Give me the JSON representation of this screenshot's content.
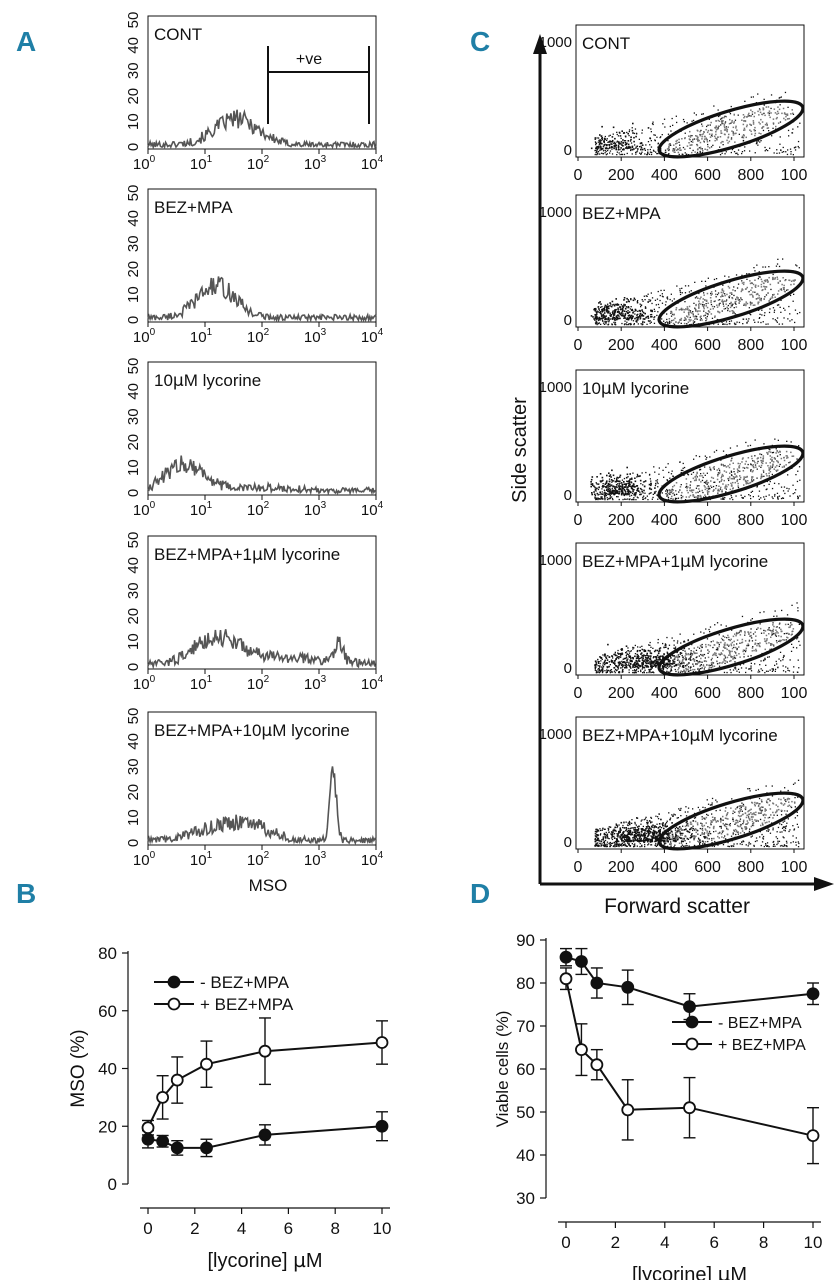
{
  "panel_labels": {
    "A": "A",
    "B": "B",
    "C": "C",
    "D": "D"
  },
  "colors": {
    "label_blue": "#1f7fa6",
    "trace": "#555555",
    "dots": "#111111",
    "ink": "#111111"
  },
  "panel_a": {
    "x_ticks": [
      "10",
      "10",
      "10",
      "10",
      "10"
    ],
    "x_exps": [
      "0",
      "1",
      "2",
      "3",
      "4"
    ],
    "y_ticks": [
      "0",
      "10",
      "20",
      "30",
      "40",
      "50"
    ],
    "xlabel": "MSO",
    "gate_label": "+ve",
    "histograms": [
      {
        "label": "CONT"
      },
      {
        "label": "BEZ+MPA"
      },
      {
        "label_pre": "10",
        "label_mu": "µ",
        "label_post": "M lycorine"
      },
      {
        "label_pre": "BEZ+MPA+1",
        "label_mu": "µ",
        "label_post": "M lycorine"
      },
      {
        "label_pre": "BEZ+MPA+10",
        "label_mu": "µ",
        "label_post": "M lycorine"
      }
    ]
  },
  "panel_c": {
    "x_ticks": [
      "0",
      "200",
      "400",
      "600",
      "800",
      "100"
    ],
    "y_ticks": [
      "0",
      "1000"
    ],
    "xlabel": "Forward scatter",
    "ylabel": "Side scatter",
    "scatters": [
      {
        "label": "CONT"
      },
      {
        "label": "BEZ+MPA"
      },
      {
        "label_pre": "10",
        "label_mu": "µ",
        "label_post": "M lycorine"
      },
      {
        "label_pre": "BEZ+MPA+1",
        "label_mu": "µ",
        "label_post": "M lycorine"
      },
      {
        "label_pre": "BEZ+MPA+10",
        "label_mu": "µ",
        "label_post": "M lycorine"
      }
    ]
  },
  "chart_data": [
    {
      "panel": "B",
      "type": "line",
      "x": [
        0,
        0.625,
        1.25,
        2.5,
        5,
        10
      ],
      "series": [
        {
          "name": "- BEZ+MPA",
          "marker": "filled",
          "values": [
            15.5,
            14.8,
            12.5,
            12.5,
            17,
            20
          ],
          "errors": [
            3,
            2,
            2.5,
            3,
            3.5,
            5
          ]
        },
        {
          "name": "+ BEZ+MPA",
          "marker": "open",
          "values": [
            19.5,
            30,
            36,
            41.5,
            46,
            49
          ],
          "errors": [
            2.5,
            7.5,
            8,
            8,
            11.5,
            7.5
          ]
        }
      ],
      "xlabel_pre": "[lycorine] ",
      "xlabel_mu": "µ",
      "xlabel_post": "M",
      "ylabel": "MSO (%)",
      "xlim": [
        0,
        10
      ],
      "ylim": [
        0,
        80
      ],
      "x_ticks": [
        "0",
        "2",
        "4",
        "6",
        "8",
        "10"
      ],
      "y_ticks": [
        "0",
        "20",
        "40",
        "60",
        "80"
      ],
      "legend_position": "top-left"
    },
    {
      "panel": "D",
      "type": "line",
      "x": [
        0,
        0.625,
        1.25,
        2.5,
        5,
        10
      ],
      "series": [
        {
          "name": "- BEZ+MPA",
          "marker": "filled",
          "values": [
            86,
            85,
            80,
            79,
            74.5,
            77.5
          ],
          "errors": [
            2,
            3,
            3.5,
            4,
            3,
            2.5
          ]
        },
        {
          "name": "+ BEZ+MPA",
          "marker": "open",
          "values": [
            81,
            64.5,
            61,
            50.5,
            51,
            44.5
          ],
          "errors": [
            2.5,
            6,
            3.5,
            7,
            7,
            6.5
          ]
        }
      ],
      "xlabel_pre": "[lycorine] ",
      "xlabel_mu": "µ",
      "xlabel_post": "M",
      "ylabel": "Viable cells (%)",
      "xlim": [
        0,
        10
      ],
      "ylim": [
        30,
        90
      ],
      "x_ticks": [
        "0",
        "2",
        "4",
        "6",
        "8",
        "10"
      ],
      "y_ticks": [
        "30",
        "40",
        "50",
        "60",
        "70",
        "80",
        "90"
      ],
      "legend_position": "right"
    }
  ]
}
